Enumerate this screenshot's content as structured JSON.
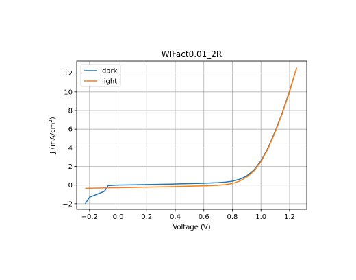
{
  "chart_data": {
    "type": "line",
    "title": "WIFact0.01_2R",
    "xlabel": "Voltage (V)",
    "ylabel_main": "J (mA/cm",
    "ylabel_sup": "2",
    "ylabel_close": ")",
    "xlim": [
      -0.29,
      1.32
    ],
    "ylim": [
      -2.6,
      13.3
    ],
    "xticks": [
      -0.2,
      0.0,
      0.2,
      0.4,
      0.6,
      0.8,
      1.0,
      1.2
    ],
    "xtick_labels": [
      "−0.2",
      "0.0",
      "0.2",
      "0.4",
      "0.6",
      "0.8",
      "1.0",
      "1.2"
    ],
    "yticks": [
      -2,
      0,
      2,
      4,
      6,
      8,
      10,
      12
    ],
    "ytick_labels": [
      "−2",
      "0",
      "2",
      "4",
      "6",
      "8",
      "10",
      "12"
    ],
    "grid": true,
    "legend_position": "top-left",
    "series": [
      {
        "name": "dark",
        "color": "#1f77b4",
        "x": [
          -0.23,
          -0.2,
          -0.15,
          -0.1,
          -0.09,
          -0.08,
          -0.07,
          0.0,
          0.1,
          0.2,
          0.3,
          0.4,
          0.5,
          0.6,
          0.7,
          0.75,
          0.8,
          0.85,
          0.9,
          0.95,
          1.0,
          1.05,
          1.1,
          1.15,
          1.2,
          1.25
        ],
        "y": [
          -2.0,
          -1.3,
          -1.0,
          -0.7,
          -0.55,
          -0.3,
          -0.05,
          0.0,
          0.03,
          0.06,
          0.09,
          0.12,
          0.16,
          0.2,
          0.26,
          0.32,
          0.42,
          0.62,
          0.98,
          1.6,
          2.6,
          4.0,
          5.8,
          7.8,
          10.1,
          12.6
        ]
      },
      {
        "name": "light",
        "color": "#ff7f0e",
        "x": [
          -0.23,
          -0.1,
          0.0,
          0.1,
          0.2,
          0.3,
          0.4,
          0.5,
          0.6,
          0.7,
          0.75,
          0.8,
          0.85,
          0.9,
          0.95,
          1.0,
          1.05,
          1.1,
          1.15,
          1.2,
          1.25
        ],
        "y": [
          -0.35,
          -0.3,
          -0.28,
          -0.25,
          -0.22,
          -0.19,
          -0.16,
          -0.12,
          -0.08,
          -0.02,
          0.05,
          0.17,
          0.42,
          0.85,
          1.5,
          2.5,
          3.9,
          5.7,
          7.7,
          10.0,
          12.6
        ]
      }
    ]
  }
}
